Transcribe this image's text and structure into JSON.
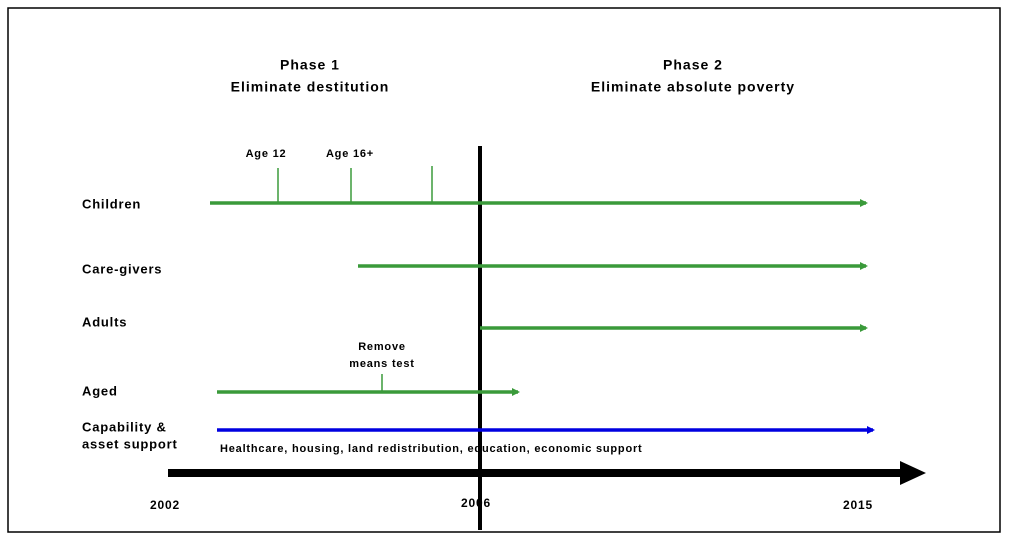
{
  "phases": [
    {
      "title": "Phase 1",
      "subtitle": "Eliminate destitution"
    },
    {
      "title": "Phase 2",
      "subtitle": "Eliminate absolute poverty"
    }
  ],
  "rows": [
    {
      "label": "Children"
    },
    {
      "label": "Care-givers"
    },
    {
      "label": "Adults"
    },
    {
      "label": "Aged"
    },
    {
      "label_lines": [
        "Capability &",
        "asset support"
      ]
    }
  ],
  "annotations": {
    "age_12": "Age 12",
    "age_16": "Age 16+",
    "means_test": [
      "Remove",
      "means test"
    ],
    "support": "Healthcare, housing, land redistribution, education, economic support"
  },
  "years": [
    "2002",
    "2006",
    "2015"
  ]
}
